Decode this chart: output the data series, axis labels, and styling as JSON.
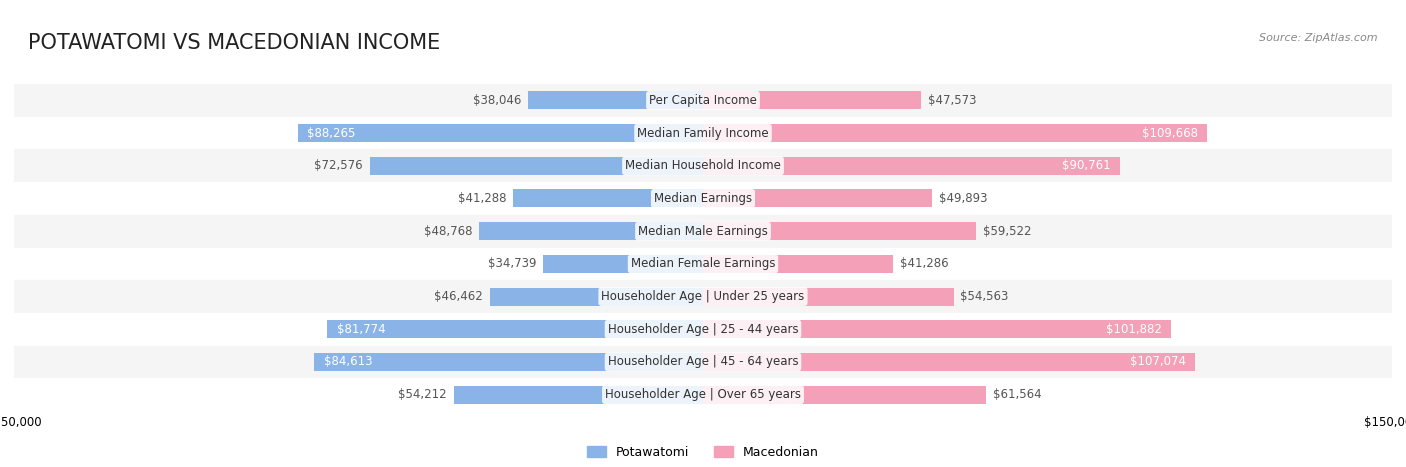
{
  "title": "POTAWATOMI VS MACEDONIAN INCOME",
  "source": "Source: ZipAtlas.com",
  "categories": [
    "Per Capita Income",
    "Median Family Income",
    "Median Household Income",
    "Median Earnings",
    "Median Male Earnings",
    "Median Female Earnings",
    "Householder Age | Under 25 years",
    "Householder Age | 25 - 44 years",
    "Householder Age | 45 - 64 years",
    "Householder Age | Over 65 years"
  ],
  "potawatomi": [
    38046,
    88265,
    72576,
    41288,
    48768,
    34739,
    46462,
    81774,
    84613,
    54212
  ],
  "macedonian": [
    47573,
    109668,
    90761,
    49893,
    59522,
    41286,
    54563,
    101882,
    107074,
    61564
  ],
  "potawatomi_labels": [
    "$38,046",
    "$88,265",
    "$72,576",
    "$41,288",
    "$48,768",
    "$34,739",
    "$46,462",
    "$81,774",
    "$84,613",
    "$54,212"
  ],
  "macedonian_labels": [
    "$47,573",
    "$109,668",
    "$90,761",
    "$49,893",
    "$59,522",
    "$41,286",
    "$54,563",
    "$101,882",
    "$107,074",
    "$61,564"
  ],
  "color_potawatomi": "#8ab4e8",
  "color_macedonian": "#f4a0b8",
  "color_potawatomi_dark": "#6699cc",
  "color_macedonian_dark": "#f06090",
  "axis_limit": 150000,
  "background_row_light": "#f5f5f5",
  "background_row_dark": "#ffffff",
  "bar_height": 0.55,
  "title_fontsize": 15,
  "label_fontsize": 8.5,
  "category_fontsize": 8.5,
  "legend_fontsize": 9,
  "source_fontsize": 8
}
